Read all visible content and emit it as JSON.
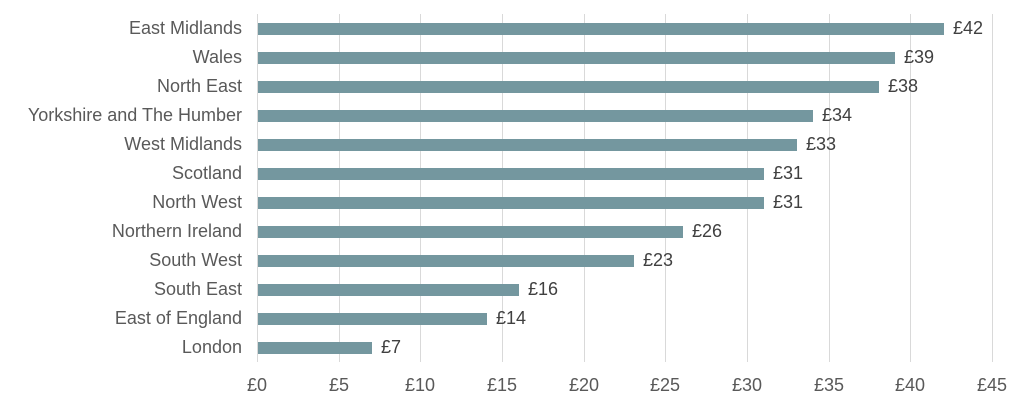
{
  "chart_data": {
    "type": "bar",
    "orientation": "horizontal",
    "categories": [
      "East Midlands",
      "Wales",
      "North East",
      "Yorkshire and The Humber",
      "West Midlands",
      "Scotland",
      "North West",
      "Northern Ireland",
      "South West",
      "South East",
      "East of England",
      "London"
    ],
    "values": [
      42,
      39,
      38,
      34,
      33,
      31,
      31,
      26,
      23,
      16,
      14,
      7
    ],
    "value_labels": [
      "£42",
      "£39",
      "£38",
      "£34",
      "£33",
      "£31",
      "£31",
      "£26",
      "£23",
      "£16",
      "£14",
      "£7"
    ],
    "x_ticks": [
      0,
      5,
      10,
      15,
      20,
      25,
      30,
      35,
      40,
      45
    ],
    "x_tick_labels": [
      "£0",
      "£5",
      "£10",
      "£15",
      "£20",
      "£25",
      "£30",
      "£35",
      "£40",
      "£45"
    ],
    "xlim": [
      0,
      45
    ],
    "grid": true,
    "legend": "none",
    "colors": {
      "bar": "#74979F",
      "gridline": "#D9D9D9",
      "category_label": "#595959",
      "value_label": "#404040",
      "tick_label": "#595959",
      "background": "#FFFFFF"
    }
  }
}
